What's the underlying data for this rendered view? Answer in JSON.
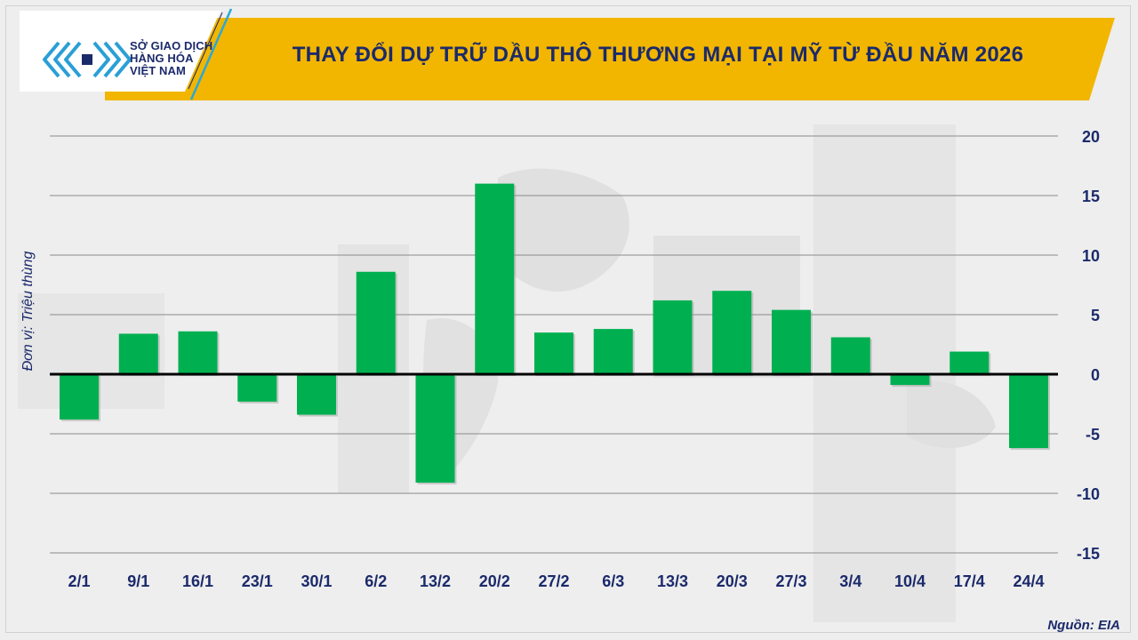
{
  "header": {
    "title": "THAY ĐỔI DỰ TRỮ DẦU THÔ THƯƠNG MẠI TẠI MỸ TỪ ĐẦU NĂM 2026",
    "logo_lines": [
      "SỞ GIAO DỊCH",
      "HÀNG HÓA",
      "VIỆT NAM"
    ]
  },
  "colors": {
    "bar": "#00b050",
    "banner": "#f2b600",
    "text": "#1b2a6b",
    "zero_line": "#000000",
    "grid": "#8a8a8a"
  },
  "footer": {
    "source": "Nguồn: EIA"
  },
  "chart_data": {
    "type": "bar",
    "title": "THAY ĐỔI DỰ TRỮ DẦU THÔ THƯƠNG MẠI TẠI MỸ TỪ ĐẦU NĂM 2026",
    "ylabel": "Đơn vị: Triệu thùng",
    "xlabel": "",
    "categories": [
      "2/1",
      "9/1",
      "16/1",
      "23/1",
      "30/1",
      "6/2",
      "13/2",
      "20/2",
      "27/2",
      "6/3",
      "13/3",
      "20/3",
      "27/3",
      "3/4",
      "10/4",
      "17/4",
      "24/4"
    ],
    "values": [
      -3.8,
      3.4,
      3.6,
      -2.3,
      -3.4,
      8.6,
      -9.1,
      16.0,
      3.5,
      3.8,
      6.2,
      7.0,
      5.4,
      3.1,
      -0.9,
      1.9,
      -6.2
    ],
    "ylim": [
      -15,
      20
    ],
    "yticks": [
      20,
      15,
      10,
      5,
      0,
      -5,
      -10,
      -15
    ],
    "y_axis_side": "right",
    "grid": true
  }
}
